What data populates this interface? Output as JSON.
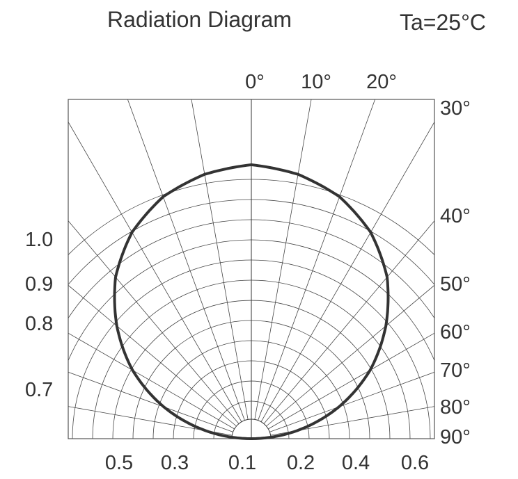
{
  "chart_data": {
    "type": "polar",
    "title": "Radiation Diagram",
    "condition": "Ta=25°C",
    "angle_top_labels": [
      "0°",
      "10°",
      "20°"
    ],
    "angle_right_labels": [
      "30°",
      "40°",
      "50°",
      "60°",
      "70°",
      "80°",
      "90°"
    ],
    "left_scale_labels": [
      "1.0",
      "0.9",
      "0.8",
      "0.7"
    ],
    "bottom_scale_labels": [
      "0.5",
      "0.3",
      "0.1",
      "0.2",
      "0.4",
      "0.6"
    ],
    "angles_deg": [
      0,
      10,
      20,
      30,
      40,
      50,
      60,
      70,
      80,
      90
    ],
    "relative_intensity": [
      1.0,
      0.98,
      0.94,
      0.87,
      0.77,
      0.64,
      0.5,
      0.34,
      0.17,
      0.0
    ],
    "grid": true
  }
}
